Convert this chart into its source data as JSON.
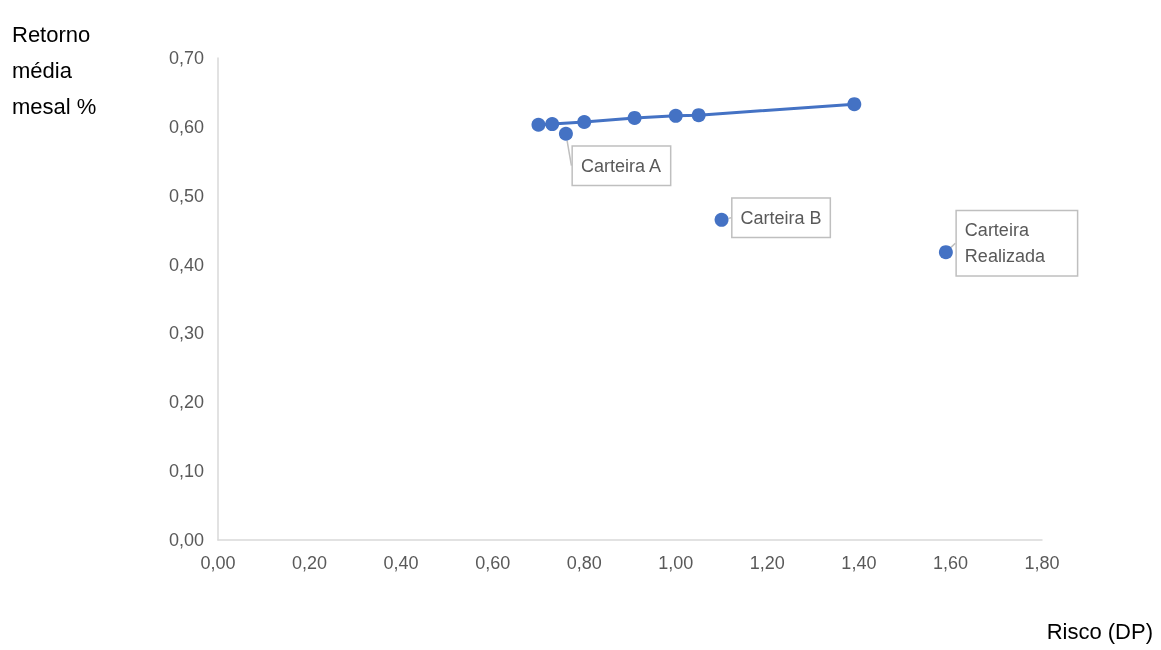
{
  "chart_data": {
    "type": "scatter",
    "xlabel": "Risco (DP)",
    "ylabel": "Retorno média mesal %",
    "xlim": [
      0,
      1.8
    ],
    "ylim": [
      0,
      0.7
    ],
    "xticks": [
      {
        "value": 0,
        "label": "0,00"
      },
      {
        "value": 0.2,
        "label": "0,20"
      },
      {
        "value": 0.4,
        "label": "0,40"
      },
      {
        "value": 0.6,
        "label": "0,60"
      },
      {
        "value": 0.8,
        "label": "0,80"
      },
      {
        "value": 1.0,
        "label": "1,00"
      },
      {
        "value": 1.2,
        "label": "1,20"
      },
      {
        "value": 1.4,
        "label": "1,40"
      },
      {
        "value": 1.6,
        "label": "1,60"
      },
      {
        "value": 1.8,
        "label": "1,80"
      }
    ],
    "yticks": [
      {
        "value": 0,
        "label": "0,00"
      },
      {
        "value": 0.1,
        "label": "0,10"
      },
      {
        "value": 0.2,
        "label": "0,20"
      },
      {
        "value": 0.3,
        "label": "0,30"
      },
      {
        "value": 0.4,
        "label": "0,40"
      },
      {
        "value": 0.5,
        "label": "0,50"
      },
      {
        "value": 0.6,
        "label": "0,60"
      },
      {
        "value": 0.7,
        "label": "0,70"
      }
    ],
    "marker": "circle",
    "series": [
      {
        "type": "line",
        "color": "#4472c4",
        "x": [
          0.7,
          0.73,
          0.8,
          0.91,
          1.0,
          1.05,
          1.39
        ],
        "values": [
          0.603,
          0.604,
          0.607,
          0.613,
          0.616,
          0.617,
          0.633
        ]
      },
      {
        "color": "#4472c4",
        "x": [
          0.76,
          1.1,
          1.59
        ],
        "values": [
          0.59,
          0.465,
          0.418
        ]
      }
    ],
    "annotations": [
      {
        "text": "Carteira A",
        "x": 0.76,
        "y": 0.59
      },
      {
        "text": "Carteira B",
        "x": 1.1,
        "y": 0.465
      },
      {
        "text": "Carteira Realizada",
        "x": 1.59,
        "y": 0.418
      }
    ]
  }
}
